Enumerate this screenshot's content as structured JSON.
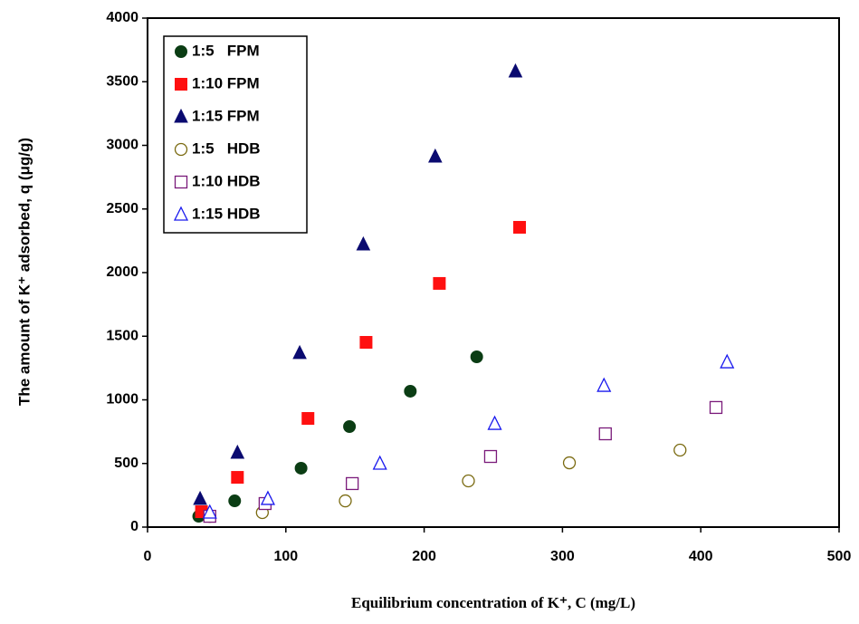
{
  "chart_data": {
    "type": "scatter",
    "x_label": "Equilibrium  concentration of  K⁺,  C (mg/L)",
    "y_label": "The amount of K⁺ adsorbed, q (μg/g)",
    "xlim": [
      0,
      500
    ],
    "xticks": [
      0,
      100,
      200,
      300,
      400,
      500
    ],
    "ylim": [
      0,
      4000
    ],
    "yticks": [
      0,
      500,
      1000,
      1500,
      2000,
      2500,
      3000,
      3500,
      4000
    ],
    "legend": "upper left",
    "series": [
      {
        "name": "1:5   FPM",
        "color": "#0b3d14",
        "marker": "circle",
        "filled": true,
        "x": [
          37,
          63,
          111,
          146,
          190,
          238
        ],
        "values": [
          85,
          206,
          463,
          790,
          1068,
          1338
        ]
      },
      {
        "name": "1:10 FPM",
        "color": "#ff1010",
        "marker": "square",
        "filled": true,
        "x": [
          39,
          65,
          116,
          158,
          211,
          269
        ],
        "values": [
          121,
          391,
          854,
          1452,
          1915,
          2356
        ]
      },
      {
        "name": "1:15 FPM",
        "color": "#0a0a70",
        "marker": "triangle",
        "filled": true,
        "x": [
          38,
          65,
          110,
          156,
          208,
          266
        ],
        "values": [
          221,
          584,
          1367,
          2221,
          2911,
          3580
        ]
      },
      {
        "name": "1:5   HDB",
        "color": "#7a6a10",
        "marker": "circle",
        "filled": false,
        "x": [
          45,
          83,
          143,
          232,
          305,
          385
        ],
        "values": [
          85,
          114,
          206,
          363,
          505,
          605
        ]
      },
      {
        "name": "1:10 HDB",
        "color": "#7a1a7a",
        "marker": "square",
        "filled": false,
        "x": [
          45,
          85,
          148,
          248,
          331,
          411
        ],
        "values": [
          85,
          185,
          342,
          555,
          733,
          940
        ]
      },
      {
        "name": "1:15 HDB",
        "color": "#1a1aee",
        "marker": "triangle",
        "filled": false,
        "x": [
          45,
          87,
          168,
          251,
          330,
          419
        ],
        "values": [
          114,
          221,
          498,
          811,
          1110,
          1295
        ]
      }
    ]
  }
}
